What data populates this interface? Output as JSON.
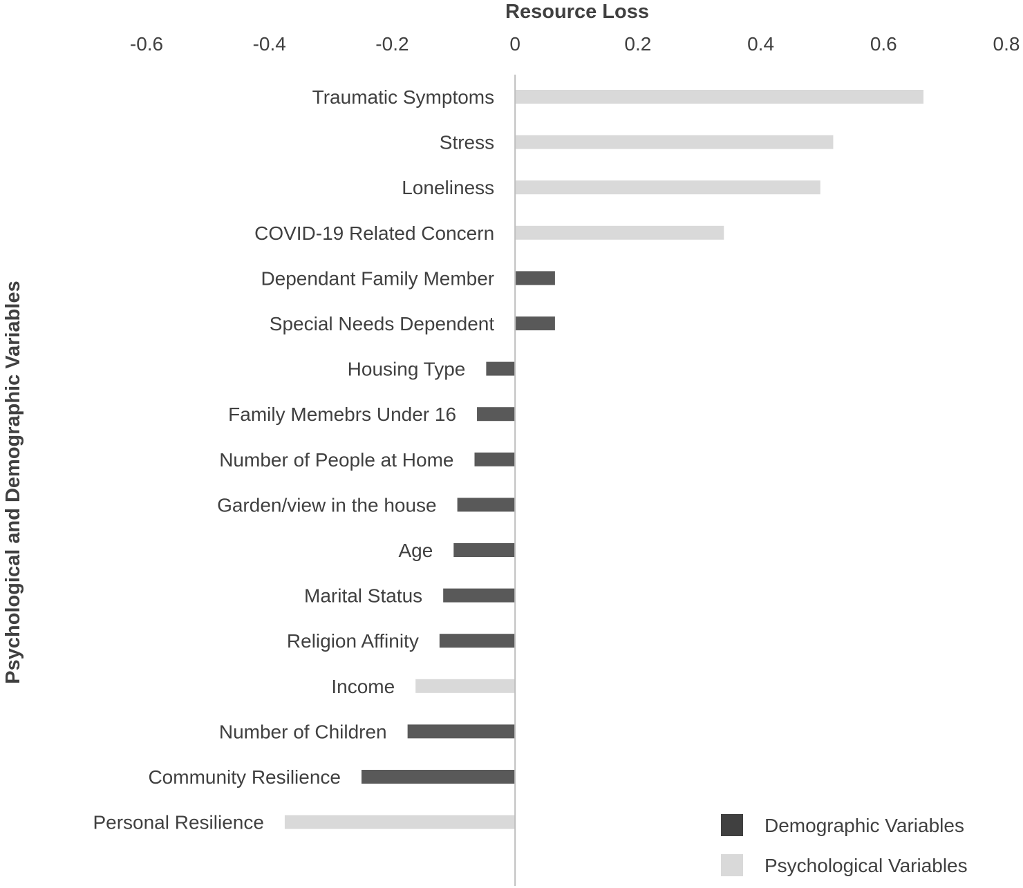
{
  "chart_data": {
    "type": "bar",
    "orientation": "horizontal",
    "title": "Resource Loss",
    "xlabel": "Resource Loss",
    "ylabel": "Psychological and Demographic Variables",
    "xlim": [
      -0.6,
      0.8
    ],
    "xticks": [
      -0.6,
      -0.4,
      -0.2,
      0,
      0.2,
      0.4,
      0.6,
      0.8
    ],
    "xtick_labels": [
      "-0.6",
      "-0.4",
      "-0.2",
      "0",
      "0.2",
      "0.4",
      "0.6",
      "0.8"
    ],
    "x_axis_position": "top",
    "grid": false,
    "legend_position": "bottom-right",
    "series": [
      {
        "name": "Demographic Variables",
        "color": "#595959"
      },
      {
        "name": "Psychological Variables",
        "color": "#d9d9d9"
      }
    ],
    "bars": [
      {
        "label": "Traumatic Symptoms",
        "value": 0.665,
        "group": "Psychological Variables"
      },
      {
        "label": "Stress",
        "value": 0.518,
        "group": "Psychological Variables"
      },
      {
        "label": "Loneliness",
        "value": 0.497,
        "group": "Psychological Variables"
      },
      {
        "label": "COVID-19 Related Concern",
        "value": 0.34,
        "group": "Psychological Variables"
      },
      {
        "label": "Dependant Family Member",
        "value": 0.065,
        "group": "Demographic Variables"
      },
      {
        "label": "Special Needs Dependent",
        "value": 0.065,
        "group": "Demographic Variables"
      },
      {
        "label": "Housing Type",
        "value": -0.047,
        "group": "Demographic Variables"
      },
      {
        "label": "Family Memebrs Under 16",
        "value": -0.062,
        "group": "Demographic Variables"
      },
      {
        "label": "Number of People at Home",
        "value": -0.066,
        "group": "Demographic Variables"
      },
      {
        "label": "Garden/view in the house",
        "value": -0.094,
        "group": "Demographic Variables"
      },
      {
        "label": "Age",
        "value": -0.1,
        "group": "Demographic Variables"
      },
      {
        "label": "Marital Status",
        "value": -0.117,
        "group": "Demographic Variables"
      },
      {
        "label": "Religion Affinity",
        "value": -0.123,
        "group": "Demographic Variables"
      },
      {
        "label": "Income",
        "value": -0.162,
        "group": "Psychological Variables"
      },
      {
        "label": "Number of Children",
        "value": -0.175,
        "group": "Demographic Variables"
      },
      {
        "label": "Community Resilience",
        "value": -0.25,
        "group": "Demographic Variables"
      },
      {
        "label": "Personal Resilience",
        "value": -0.375,
        "group": "Psychological Variables"
      }
    ]
  }
}
